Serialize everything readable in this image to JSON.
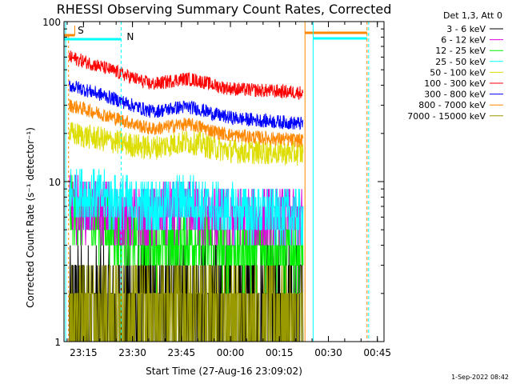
{
  "chart_data": {
    "type": "line",
    "title": "RHESSI Observing Summary Count Rates, Corrected",
    "xlabel": "Start Time (27-Aug-16 23:09:02)",
    "ylabel": "Corrected Count Rate (s⁻¹ detector⁻¹)",
    "yscale": "log",
    "ylim": [
      1,
      100
    ],
    "xlim_minutes": [
      0,
      98
    ],
    "x_ticks": [
      "23:15",
      "23:30",
      "23:45",
      "00:00",
      "00:15",
      "00:30",
      "00:45"
    ],
    "y_ticks": [
      "1",
      "10",
      "100"
    ],
    "legend_header": "Det 1,3, Att 0",
    "legend_position": "top-right",
    "timestamp": "1-Sep-2022 08:42",
    "flag_labels": [
      "S",
      "N"
    ],
    "series": [
      {
        "name": "3 - 6 keV",
        "color": "#000000",
        "start": 1.7,
        "mid": 1.6,
        "end": 1.7,
        "noise": 0.9,
        "quant": true
      },
      {
        "name": "6 - 12 keV",
        "color": "#dd00dd",
        "start": 7.0,
        "mid": 6.0,
        "end": 5.8,
        "noise": 0.45,
        "quant": true
      },
      {
        "name": "12 - 25 keV",
        "color": "#00ee00",
        "start": 6.5,
        "mid": 4.0,
        "end": 3.8,
        "noise": 0.5,
        "quant": true
      },
      {
        "name": "25 - 50 keV",
        "color": "#00ffff",
        "start": 8.5,
        "mid": 6.8,
        "end": 6.2,
        "noise": 0.4,
        "quant": true
      },
      {
        "name": "50 - 100 keV",
        "color": "#dddd00",
        "start": 20,
        "mid": 16,
        "end": 15,
        "noise": 0.18,
        "quant": false
      },
      {
        "name": "100 - 300 keV",
        "color": "#ff0000",
        "start": 60,
        "mid": 40,
        "end": 36,
        "noise": 0.1,
        "quant": false
      },
      {
        "name": "300 - 800 keV",
        "color": "#0000ff",
        "start": 40,
        "mid": 27,
        "end": 23,
        "noise": 0.1,
        "quant": false
      },
      {
        "name": "800 - 7000 keV",
        "color": "#ff8800",
        "start": 30,
        "mid": 21,
        "end": 18,
        "noise": 0.1,
        "quant": false
      },
      {
        "name": "7000 - 15000 keV",
        "color": "#999900",
        "start": 1.6,
        "mid": 1.5,
        "end": 1.5,
        "noise": 0.7,
        "quant": true
      }
    ]
  }
}
